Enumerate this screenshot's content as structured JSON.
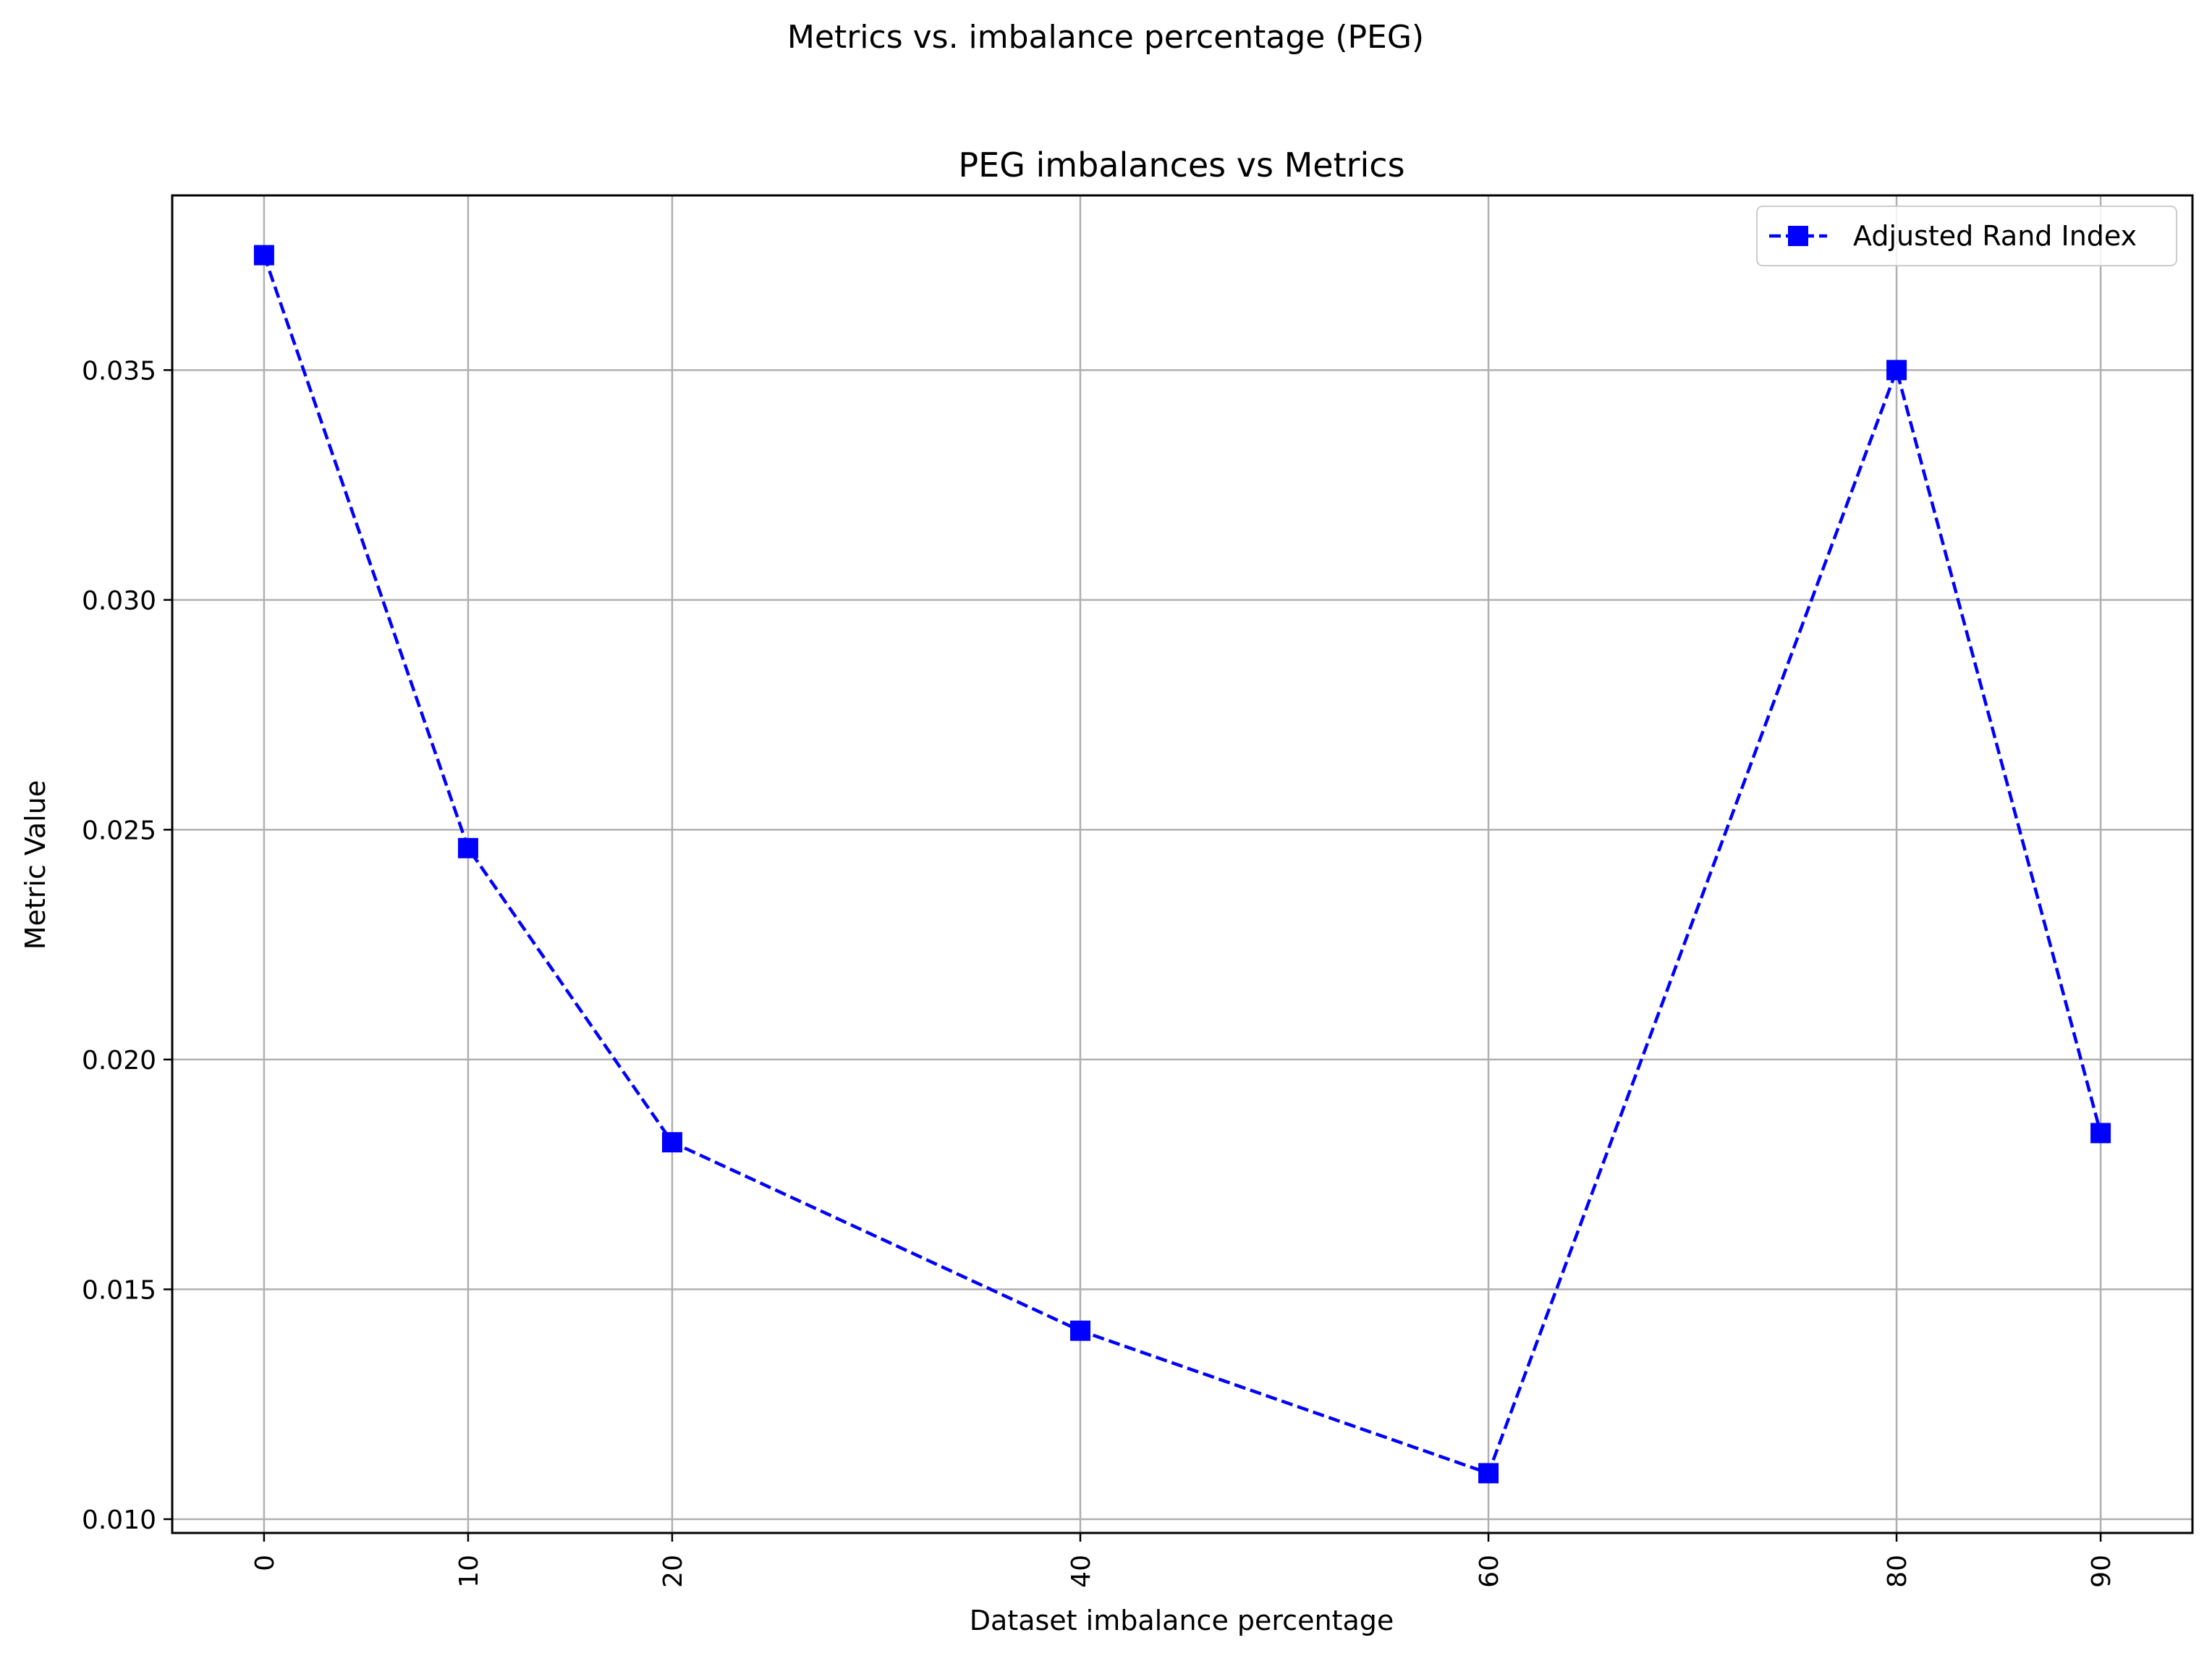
{
  "chart_data": {
    "type": "line",
    "suptitle": "Metrics vs. imbalance percentage (PEG)",
    "title": "PEG imbalances vs Metrics",
    "xlabel": "Dataset imbalance percentage",
    "ylabel": "Metric Value",
    "x": [
      0,
      10,
      20,
      40,
      60,
      80,
      90
    ],
    "x_tick_labels": [
      "0",
      "10",
      "20",
      "40",
      "60",
      "80",
      "90"
    ],
    "y_ticks": [
      0.01,
      0.015,
      0.02,
      0.025,
      0.03,
      0.035
    ],
    "y_tick_labels": [
      "0.010",
      "0.015",
      "0.020",
      "0.025",
      "0.030",
      "0.035"
    ],
    "xlim": [
      -4.5,
      94.5
    ],
    "ylim": [
      0.0097,
      0.0388
    ],
    "grid": true,
    "legend_position": "upper right",
    "series": [
      {
        "name": "Adjusted Rand Index",
        "color": "#0000ff",
        "line_style": "dashed",
        "marker": "square",
        "values": [
          0.0375,
          0.0246,
          0.0182,
          0.0141,
          0.011,
          0.035,
          0.0184
        ]
      }
    ]
  }
}
